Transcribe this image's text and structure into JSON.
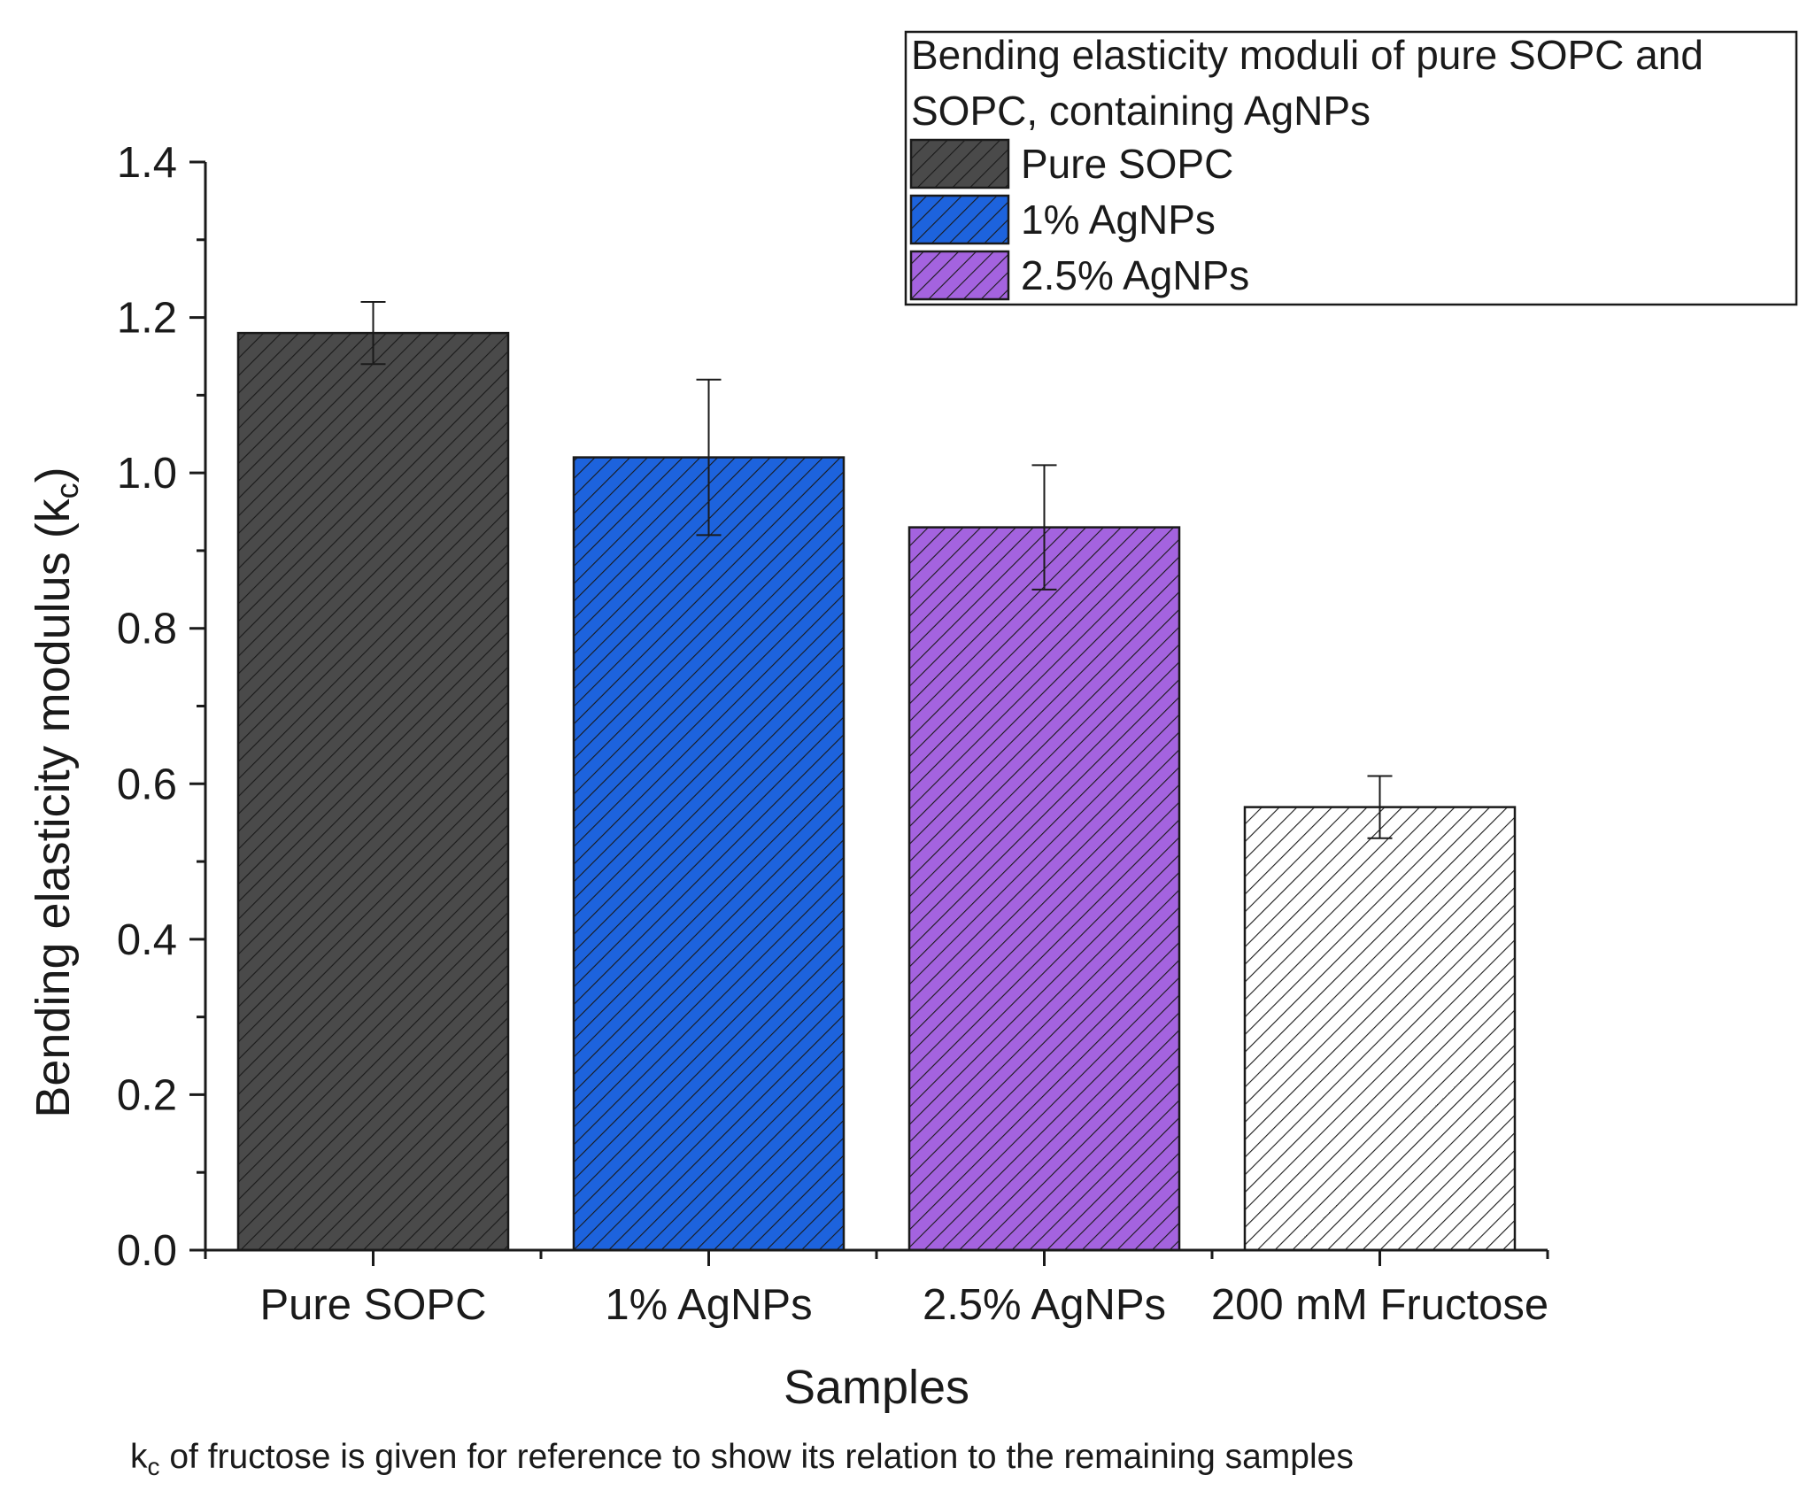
{
  "chart_data": {
    "type": "bar",
    "categories": [
      "Pure SOPC",
      "1% AgNPs",
      "2.5% AgNPs",
      "200 mM Fructose"
    ],
    "values": [
      1.18,
      1.02,
      0.93,
      0.57
    ],
    "errors": [
      0.04,
      0.1,
      0.08,
      0.04
    ],
    "bar_colors": [
      "#4a4a4a",
      "#1d63dd",
      "#a463df",
      "#ffffff"
    ],
    "hatch": "diagonal lines",
    "xlabel": "Samples",
    "ylabel_main": "Bending elasticity modulus (k",
    "ylabel_sub": "c",
    "ylabel_end": ")",
    "ylim": [
      0,
      1.4
    ],
    "yticks": [
      0.0,
      0.2,
      0.4,
      0.6,
      0.8,
      1.0,
      1.2,
      1.4
    ],
    "ytick_labels": [
      "0.0",
      "0.2",
      "0.4",
      "0.6",
      "0.8",
      "1.0",
      "1.2",
      "1.4"
    ],
    "grid": false,
    "legend": {
      "placement": "top-right",
      "title_line1": "Bending elasticity moduli of pure SOPC and",
      "title_line2": "SOPC, containing AgNPs",
      "entries": [
        {
          "label": "Pure SOPC",
          "color": "#4a4a4a"
        },
        {
          "label": "1% AgNPs",
          "color": "#1d63dd"
        },
        {
          "label": "2.5% AgNPs",
          "color": "#a463df"
        }
      ]
    },
    "note": {
      "k": "k",
      "sub": "c",
      "rest": " of fructose is given for reference to show its relation to the remaining samples"
    }
  }
}
